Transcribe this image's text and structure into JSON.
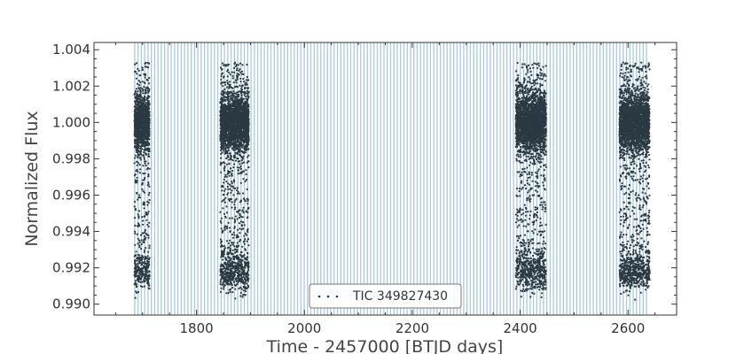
{
  "chart_data": {
    "type": "scatter",
    "title": "",
    "xlabel": "Time - 2457000 [BTJD days]",
    "ylabel": "Normalized Flux",
    "xlim": [
      1610,
      2690
    ],
    "ylim": [
      0.9894,
      1.0044
    ],
    "xticks": [
      1800,
      2000,
      2200,
      2400,
      2600
    ],
    "yticks": [
      0.99,
      0.992,
      0.994,
      0.996,
      0.998,
      1.0,
      1.002,
      1.004
    ],
    "xtick_labels": [
      "1800",
      "2000",
      "2200",
      "2400",
      "2600"
    ],
    "ytick_labels": [
      "0.990",
      "0.992",
      "0.994",
      "0.996",
      "0.998",
      "1.000",
      "1.002",
      "1.004"
    ],
    "grid": false,
    "legend": {
      "position": "bottom-center",
      "entries": [
        "TIC 349827430"
      ]
    },
    "series": [
      {
        "name": "TIC 349827430",
        "marker": "dot",
        "color": "#2b3a42",
        "baseline_flux": 1.0,
        "baseline_scatter": 0.0008,
        "in_transit_flux": 0.9918,
        "segments": [
          {
            "x_start": 1685,
            "x_end": 1713
          },
          {
            "x_start": 1844,
            "x_end": 1897
          },
          {
            "x_start": 2392,
            "x_end": 2448
          },
          {
            "x_start": 2584,
            "x_end": 2640
          }
        ]
      }
    ],
    "annotations": {
      "transit_period_lines": {
        "color": "#a9c9dc",
        "x_start": 1685.5,
        "x_end": 2636,
        "spacing": 6.16
      }
    },
    "colors": {
      "points": "#2b3a42",
      "period_lines": "#a9c9dc",
      "axes": "#333333"
    }
  }
}
